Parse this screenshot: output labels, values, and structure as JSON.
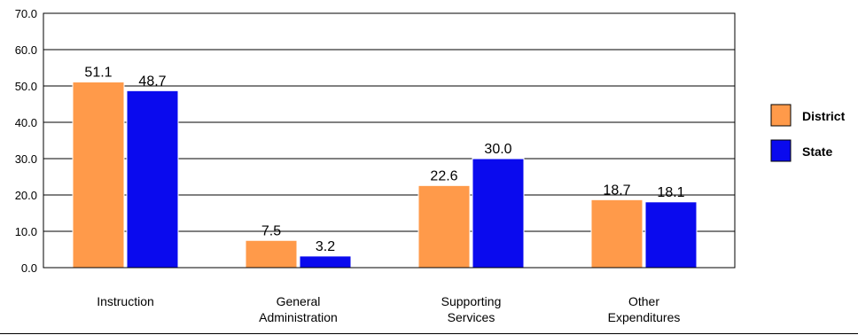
{
  "chart_data": {
    "type": "bar",
    "categories": [
      [
        "Instruction"
      ],
      [
        "General",
        "Administration"
      ],
      [
        "Supporting",
        "Services"
      ],
      [
        "Other",
        "Expenditures"
      ]
    ],
    "series": [
      {
        "name": "District",
        "values": [
          51.1,
          7.5,
          22.6,
          18.7
        ],
        "color": "#FF9A4A"
      },
      {
        "name": "State",
        "values": [
          48.7,
          3.2,
          30.0,
          18.1
        ],
        "color": "#0A0AEE"
      }
    ],
    "ylim": [
      0,
      70
    ],
    "yticks": [
      0,
      10,
      20,
      30,
      40,
      50,
      60,
      70
    ],
    "tick_format_decimals": 1,
    "grid": true,
    "legend_position": "right",
    "title": "",
    "xlabel": "",
    "ylabel": ""
  }
}
